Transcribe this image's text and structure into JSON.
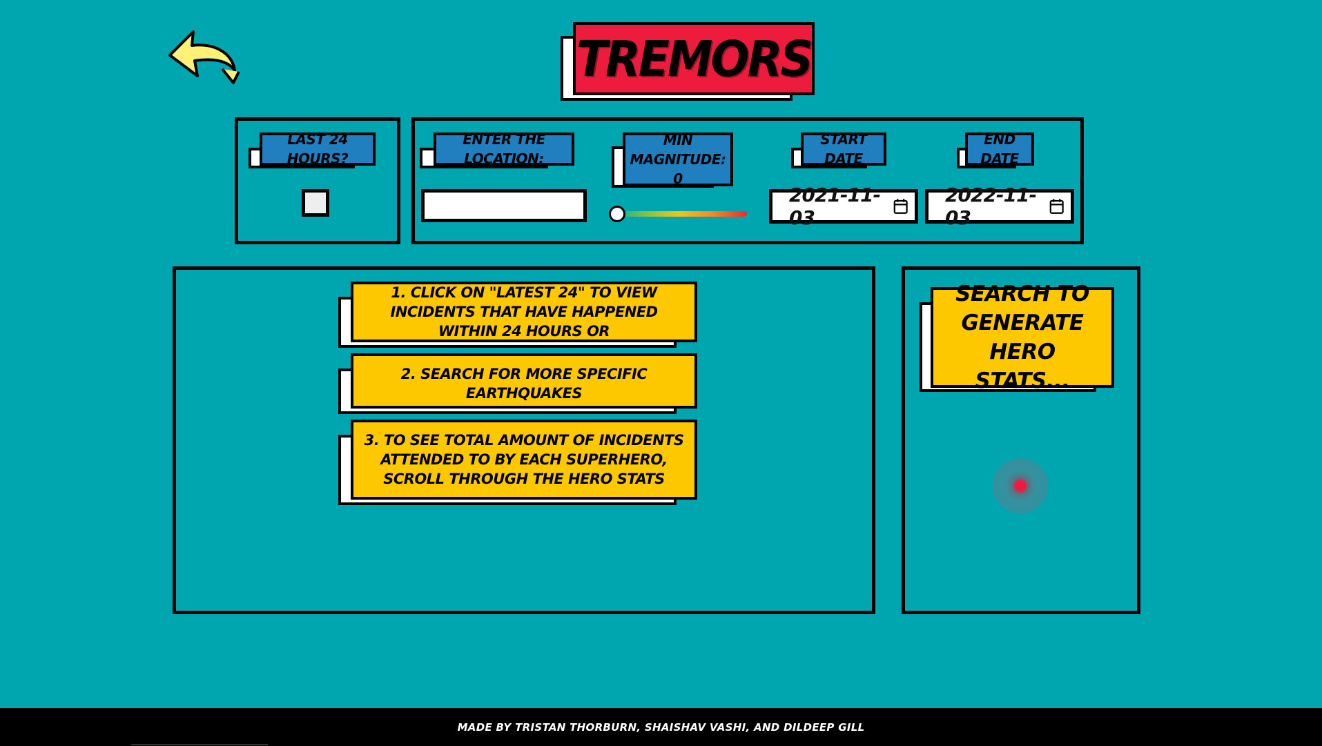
{
  "header": {
    "title": "TREMORS"
  },
  "search": {
    "last24_label": "LAST 24 HOURS?",
    "location_label": "ENTER THE LOCATION:",
    "location_value": "",
    "magnitude_label_line1": "MIN",
    "magnitude_label_line2": "MAGNITUDE: 0",
    "magnitude_value": 0,
    "start_date_label": "START DATE",
    "start_date_value": "2021-11-03",
    "end_date_label": "END DATE",
    "end_date_value": "2022-11-03"
  },
  "instructions": [
    {
      "text": "1. CLICK ON \"LATEST 24\" TO VIEW INCIDENTS THAT HAVE HAPPENED WITHIN 24 HOURS OR"
    },
    {
      "text": "2. SEARCH FOR MORE SPECIFIC EARTHQUAKES"
    },
    {
      "text": "3. TO SEE TOTAL AMOUNT OF INCIDENTS ATTENDED TO BY EACH SUPERHERO, SCROLL THROUGH THE HERO STATS"
    }
  ],
  "hero_stats": {
    "prompt": "SEARCH TO GENERATE HERO STATS..."
  },
  "footer": {
    "credits": "MADE BY TRISTAN THORBURN, SHAISHAV VASHI, AND DILDEEP GILL"
  },
  "icons": {
    "back": "back-arrow-icon",
    "calendar": "calendar-icon"
  },
  "colors": {
    "background": "#00a6af",
    "title_red": "#ee1c3c",
    "label_blue": "#1f7fbf",
    "card_yellow": "#fdc800",
    "arrow_yellow": "#fff176"
  }
}
